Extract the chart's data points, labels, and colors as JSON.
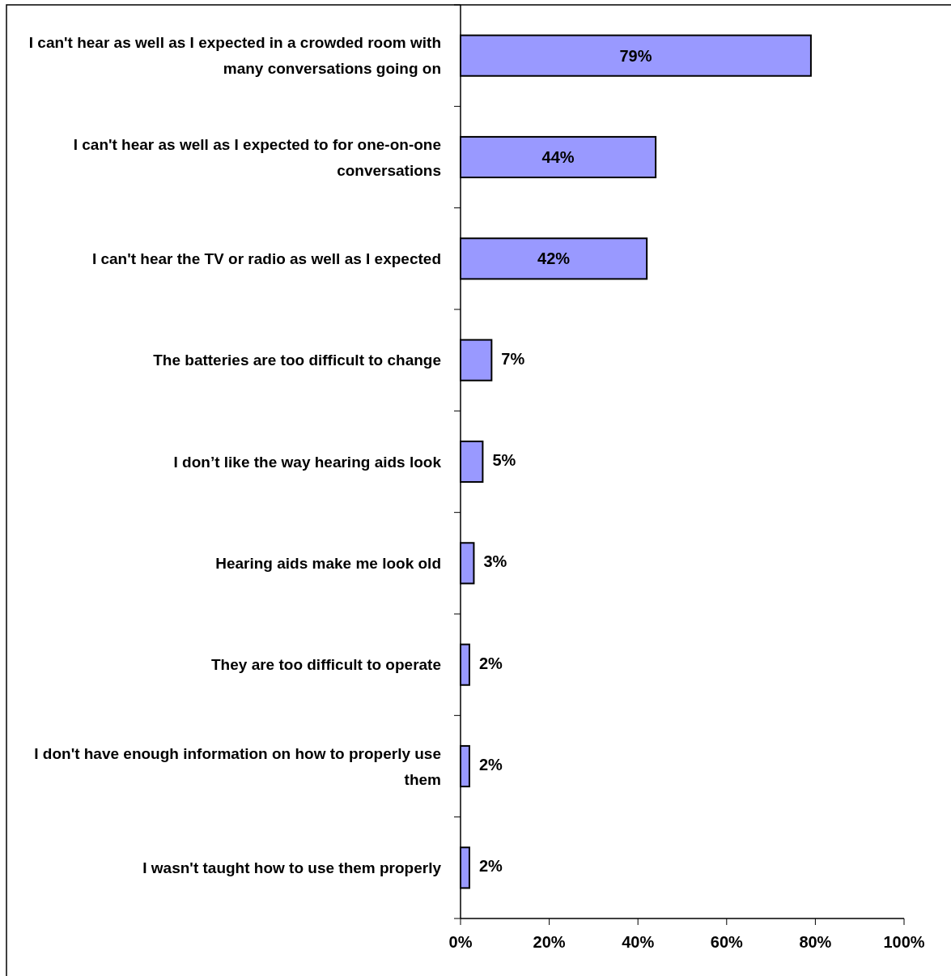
{
  "chart_data": {
    "type": "bar",
    "orientation": "horizontal",
    "categories": [
      "I can't hear as well as I expected in a crowded room with many conversations going on",
      "I can't hear as well as I expected to for one-on-one conversations",
      "I can't hear the TV or radio as well as I expected",
      "The batteries are too difficult to change",
      "I don’t like the way hearing aids look",
      "Hearing aids make me look old",
      "They are too difficult to operate",
      "I don't have enough information on how to properly use them",
      "I wasn't taught how to use them properly"
    ],
    "values": [
      79,
      44,
      42,
      7,
      5,
      3,
      2,
      2,
      2
    ],
    "color": "#9999ff",
    "xlim": [
      0,
      100
    ],
    "xticks": [
      {
        "value": 0,
        "label": "0%"
      },
      {
        "value": 20,
        "label": "20%"
      },
      {
        "value": 40,
        "label": "40%"
      },
      {
        "value": 60,
        "label": "60%"
      },
      {
        "value": 80,
        "label": "80%"
      },
      {
        "value": 100,
        "label": "100%"
      }
    ],
    "value_labels": [
      "79%",
      "44%",
      "42%",
      "7%",
      "5%",
      "3%",
      "2%",
      "2%",
      "2%"
    ],
    "grid": false
  }
}
